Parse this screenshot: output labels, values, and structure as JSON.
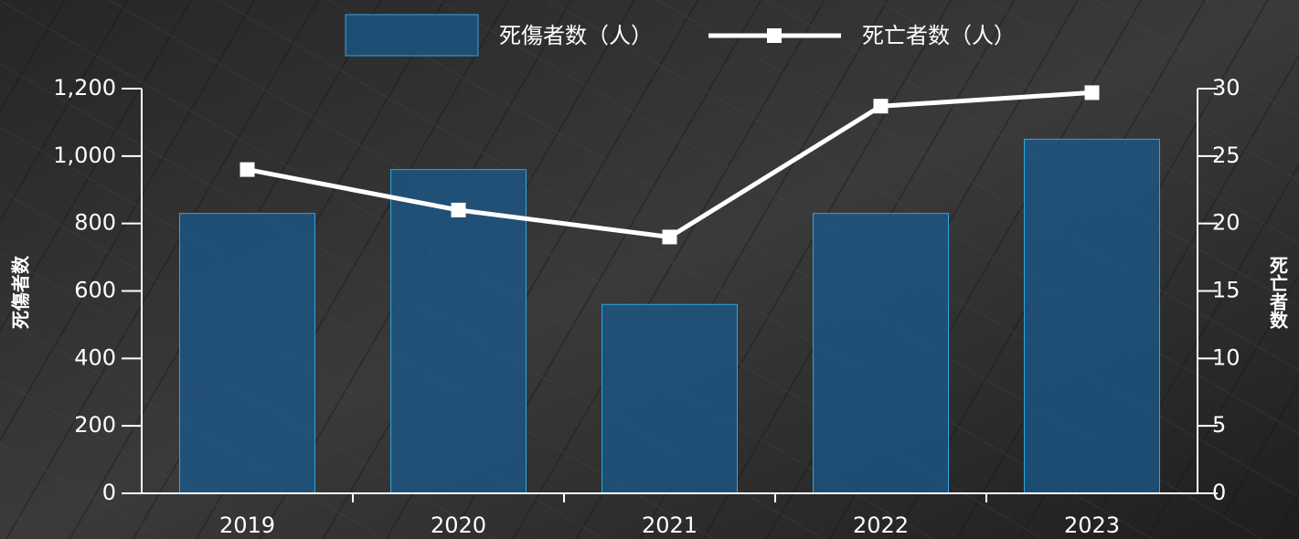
{
  "chart_data": {
    "type": "bar_line",
    "categories": [
      "2019",
      "2020",
      "2021",
      "2022",
      "2023"
    ],
    "series": [
      {
        "name": "死傷者数（人）",
        "type": "bar",
        "color": "#1b5a8c",
        "values": [
          830,
          960,
          560,
          830,
          1050
        ]
      },
      {
        "name": "死亡者数（人）",
        "type": "line",
        "axis": "y2",
        "color": "#ffffff",
        "values": [
          24,
          21,
          19,
          28.7,
          29.7
        ]
      }
    ],
    "ylabel": "死傷者数",
    "y2label": "死亡者数",
    "ylim": [
      0,
      1200
    ],
    "yticks": [
      0,
      200,
      400,
      600,
      800,
      {
        "value": 1000,
        "label": "1,000"
      },
      {
        "value": 1200,
        "label": "1,200"
      }
    ],
    "y2lim": [
      0,
      30
    ],
    "y2ticks": [
      0,
      5,
      10,
      15,
      20,
      25,
      30
    ],
    "legend": "top"
  }
}
